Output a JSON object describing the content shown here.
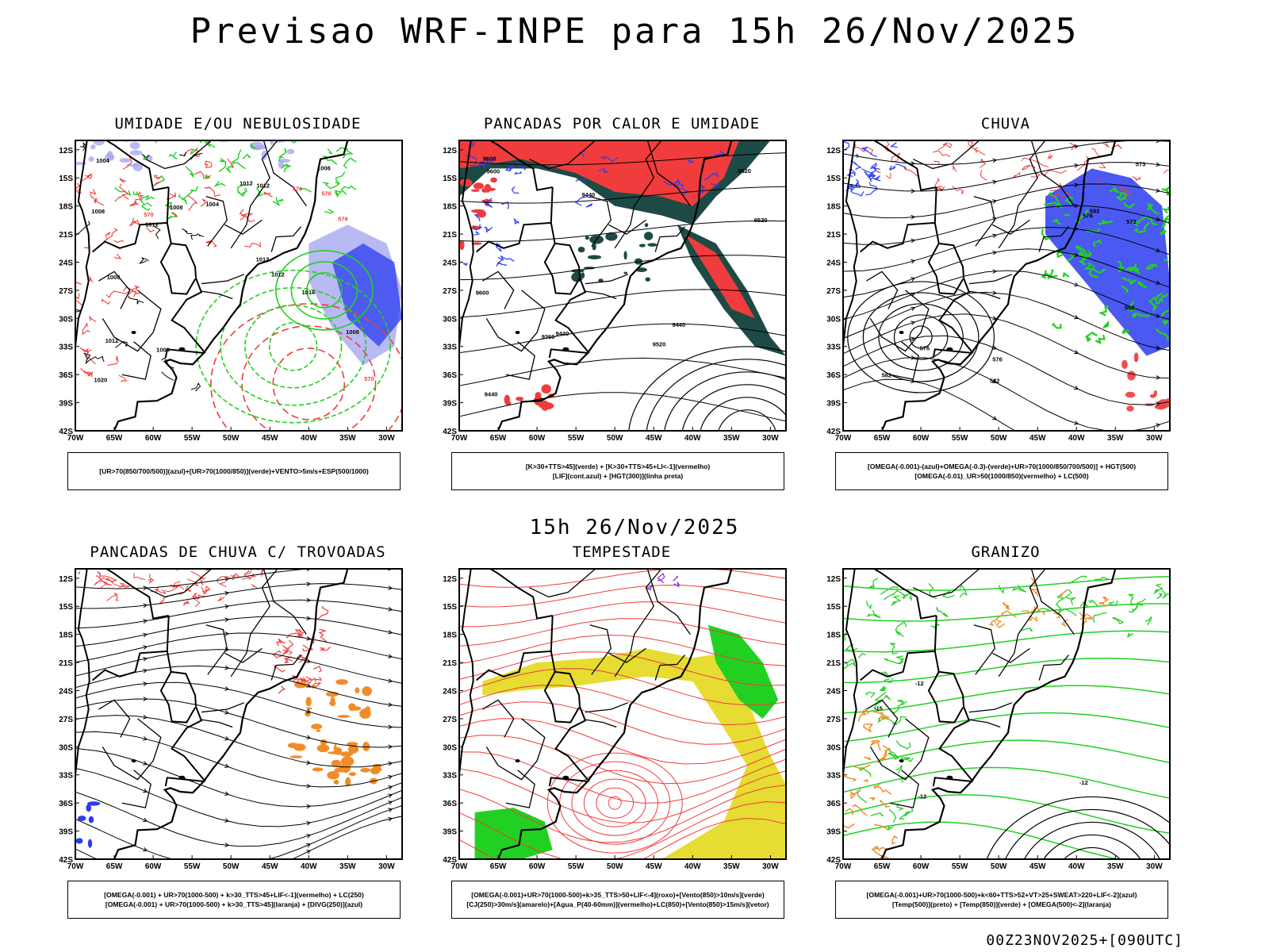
{
  "page": {
    "title": "Previsao WRF-INPE  para 15h 26/Nov/2025",
    "mid_date": "15h 26/Nov/2025",
    "run_stamp": "00Z23NOV2025+[090UTC]"
  },
  "axes": {
    "lat_ticks": [
      "12S",
      "15S",
      "18S",
      "21S",
      "24S",
      "27S",
      "30S",
      "33S",
      "36S",
      "39S",
      "42S"
    ],
    "lon_ticks": [
      "70W",
      "65W",
      "60W",
      "55W",
      "50W",
      "45W",
      "40W",
      "35W",
      "30W"
    ]
  },
  "colors": {
    "blue": "#2a3cf0",
    "light_blue": "#a8a8f0",
    "green": "#22d022",
    "red": "#f03c3c",
    "dark_teal": "#1e4a46",
    "yellow": "#e6dc32",
    "orange": "#f08c28",
    "purple": "#8a2be2",
    "black": "#000000"
  },
  "panels": [
    {
      "id": "umidade",
      "title": "UMIDADE E/OU NEBULOSIDADE",
      "legend": [
        "[UR>70(850/700/500)](azul)+[UR>70(1000/850)](verde)+VENTO>5m/s+ESP(500/1000)"
      ],
      "contour_labels": [
        "1008",
        "1008",
        "1008",
        "1004",
        "1012",
        "1012",
        "1008",
        "1012",
        "1012",
        "1012",
        "1016",
        "1020",
        "1008",
        "1004",
        "1012",
        "1008",
        "576",
        "576",
        "570",
        "570",
        "576"
      ]
    },
    {
      "id": "pancadas_calor",
      "title": "PANCADAS POR CALOR E UMIDADE",
      "legend": [
        "[K>30+TTS>45](verde) + [K>30+TTS>45+LI<-1](vermelho)",
        "[LIF](cont.azul) + [HGT(300)](linha preta)"
      ],
      "contour_labels": [
        "9600",
        "9600",
        "9600",
        "9520",
        "9520",
        "9520",
        "9440",
        "9440",
        "9440",
        "9440",
        "9360"
      ]
    },
    {
      "id": "chuva",
      "title": "CHUVA",
      "legend": [
        "[OMEGA(-0.001)-(azul)+OMEGA(-0.3)-(verde)+UR>70(1000/850/700/500)] + HGT(500)",
        "[OMEGA(-0.01)_UR>50(1000/850)(vermelho) + LC(500)"
      ],
      "contour_labels": [
        "582",
        "582",
        "582",
        "582",
        "576",
        "576",
        "573",
        "573",
        "576"
      ]
    },
    {
      "id": "trovoadas",
      "title": "PANCADAS DE CHUVA C/ TROVOADAS",
      "legend": [
        "[OMEGA(-0.001) + UR>70(1000-500) + k>30_TTS>45+LIF<-1](vermelho) + LC(250)",
        "[OMEGA(-0.001) + UR>70(1000-500) + k>30_TTS>45](laranja) + [DIVG(250)](azul)"
      ],
      "contour_labels": []
    },
    {
      "id": "tempestade",
      "title": "TEMPESTADE",
      "legend": [
        "[OMEGA(-0.001)+UR>70(1000-500)+k>35_TTS>50+LIF<-4](roxo)+[Vento(850)>10m/s](verde)",
        "[CJ(250)>30m/s](amarelo)+[Agua_P(40-60mm)](vermelho)+LC(850)+[Vento(850)>15m/s](vetor)"
      ],
      "contour_labels": []
    },
    {
      "id": "granizo",
      "title": "GRANIZO",
      "legend": [
        "[OMEGA(-0.001)+UR>70(1000-500)+k<60+TTS>52+VT>25+SWEAT>220+LIF<-2](azul)",
        "[Temp(500)](preto) + [Temp(850)](verde) + [OMEGA(500)<-2](laranja)"
      ],
      "contour_labels": [
        "-12",
        "-12",
        "-12",
        "-15"
      ]
    }
  ]
}
